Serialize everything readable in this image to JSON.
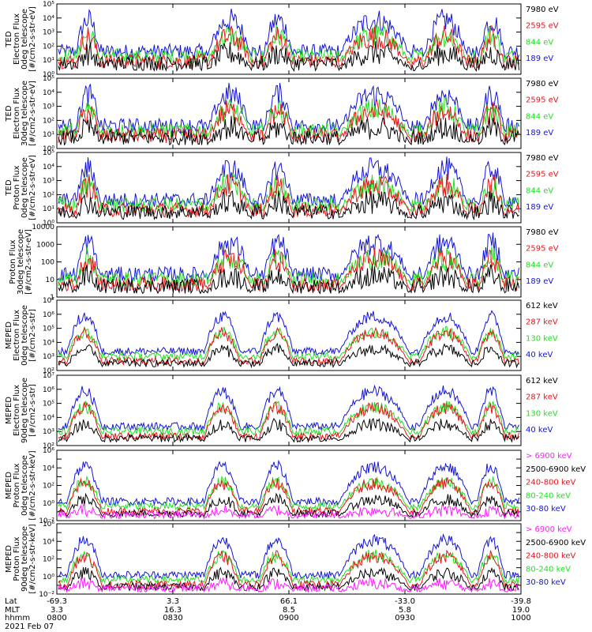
{
  "figure": {
    "date_label": "2021 Feb 07",
    "xaxis": {
      "row_labels": [
        "Lat",
        "MLT",
        "hhmm"
      ],
      "ticks": [
        {
          "lat": "-69.3",
          "mlt": "3.3",
          "hhmm": "0800"
        },
        {
          "lat": "3.3",
          "mlt": "16.3",
          "hhmm": "0830"
        },
        {
          "lat": "66.1",
          "mlt": "8.5",
          "hhmm": "0900"
        },
        {
          "lat": "-33.0",
          "mlt": "5.8",
          "hhmm": "0930"
        },
        {
          "lat": "-39.8",
          "mlt": "19.0",
          "hhmm": "1000"
        }
      ]
    }
  },
  "colors": {
    "black": "#000000",
    "red": "#e8141c",
    "green": "#20e020",
    "blue": "#1414d8",
    "magenta": "#ff1cff"
  },
  "chart_data": [
    {
      "type": "line",
      "ylabel_lines": [
        "TED",
        "Electron Flux",
        "0deg telescope",
        "[#/cm2-s-str-eV]"
      ],
      "yscale": "log",
      "ylim_exp": [
        0,
        5
      ],
      "tick_mode": "pow",
      "legend": [
        {
          "text": "7980 eV",
          "color": "black"
        },
        {
          "text": "2595 eV",
          "color": "red"
        },
        {
          "text": "844 eV",
          "color": "green"
        },
        {
          "text": "189 eV",
          "color": "blue"
        }
      ]
    },
    {
      "type": "line",
      "ylabel_lines": [
        "TED",
        "Electron Flux",
        "30deg telescope",
        "[#/cm2-s-str-eV]"
      ],
      "yscale": "log",
      "ylim_exp": [
        0,
        5
      ],
      "tick_mode": "pow",
      "legend": [
        {
          "text": "7980 eV",
          "color": "black"
        },
        {
          "text": "2595 eV",
          "color": "red"
        },
        {
          "text": "844 eV",
          "color": "green"
        },
        {
          "text": "189 eV",
          "color": "blue"
        }
      ]
    },
    {
      "type": "line",
      "ylabel_lines": [
        "TED",
        "Proton Flux",
        "0deg telescope",
        "[#/cm2-s-str-eV]"
      ],
      "yscale": "log",
      "ylim_exp": [
        0,
        5
      ],
      "tick_mode": "pow",
      "legend": [
        {
          "text": "7980 eV",
          "color": "black"
        },
        {
          "text": "2595 eV",
          "color": "red"
        },
        {
          "text": "844 eV",
          "color": "green"
        },
        {
          "text": "189 eV",
          "color": "blue"
        }
      ]
    },
    {
      "type": "line",
      "ylabel_lines": [
        "Proton Flux",
        "30deg telescope",
        "[#/cm2-s-str-eV]"
      ],
      "yscale": "log",
      "ylim_exp": [
        0,
        4
      ],
      "tick_mode": "plain",
      "legend": [
        {
          "text": "7980 eV",
          "color": "black"
        },
        {
          "text": "2595 eV",
          "color": "red"
        },
        {
          "text": "844 eV",
          "color": "green"
        },
        {
          "text": "189 eV",
          "color": "blue"
        }
      ]
    },
    {
      "type": "line",
      "ylabel_lines": [
        "MEPED",
        "Electron Flux",
        "0deg telescope",
        "[#/cm2-s-str]"
      ],
      "yscale": "log",
      "ylim_exp": [
        2,
        7
      ],
      "tick_mode": "pow",
      "legend": [
        {
          "text": "612 keV",
          "color": "black"
        },
        {
          "text": "287 keV",
          "color": "red"
        },
        {
          "text": "130 keV",
          "color": "green"
        },
        {
          "text": "40 keV",
          "color": "blue"
        }
      ]
    },
    {
      "type": "line",
      "ylabel_lines": [
        "MEPED",
        "Electron Flux",
        "90deg telescope",
        "[#/cm2-s-str]"
      ],
      "yscale": "log",
      "ylim_exp": [
        2,
        7
      ],
      "tick_mode": "pow",
      "legend": [
        {
          "text": "612 keV",
          "color": "black"
        },
        {
          "text": "287 keV",
          "color": "red"
        },
        {
          "text": "130 keV",
          "color": "green"
        },
        {
          "text": "40 keV",
          "color": "blue"
        }
      ]
    },
    {
      "type": "line",
      "ylabel_lines": [
        "MEPED",
        "Proton Flux",
        "0deg telescope",
        "[#/cm2-s-str-keV]"
      ],
      "yscale": "log",
      "ylim_exp": [
        -2,
        6
      ],
      "tick_mode": "pow",
      "tick_step": 2,
      "legend": [
        {
          "text": "> 6900 keV",
          "color": "magenta"
        },
        {
          "text": "2500-6900 keV",
          "color": "black"
        },
        {
          "text": "240-800 keV",
          "color": "red"
        },
        {
          "text": "80-240 keV",
          "color": "green"
        },
        {
          "text": "30-80 keV",
          "color": "blue"
        }
      ]
    },
    {
      "type": "line",
      "ylabel_lines": [
        "MEPED",
        "Proton Flux",
        "90deg telescope",
        "[#/cm2-s-str-keV]"
      ],
      "yscale": "log",
      "ylim_exp": [
        -2,
        6
      ],
      "tick_mode": "pow",
      "tick_step": 2,
      "legend": [
        {
          "text": "> 6900 keV",
          "color": "magenta"
        },
        {
          "text": "2500-6900 keV",
          "color": "black"
        },
        {
          "text": "240-800 keV",
          "color": "red"
        },
        {
          "text": "80-240 keV",
          "color": "green"
        },
        {
          "text": "30-80 keV",
          "color": "blue"
        }
      ]
    }
  ]
}
